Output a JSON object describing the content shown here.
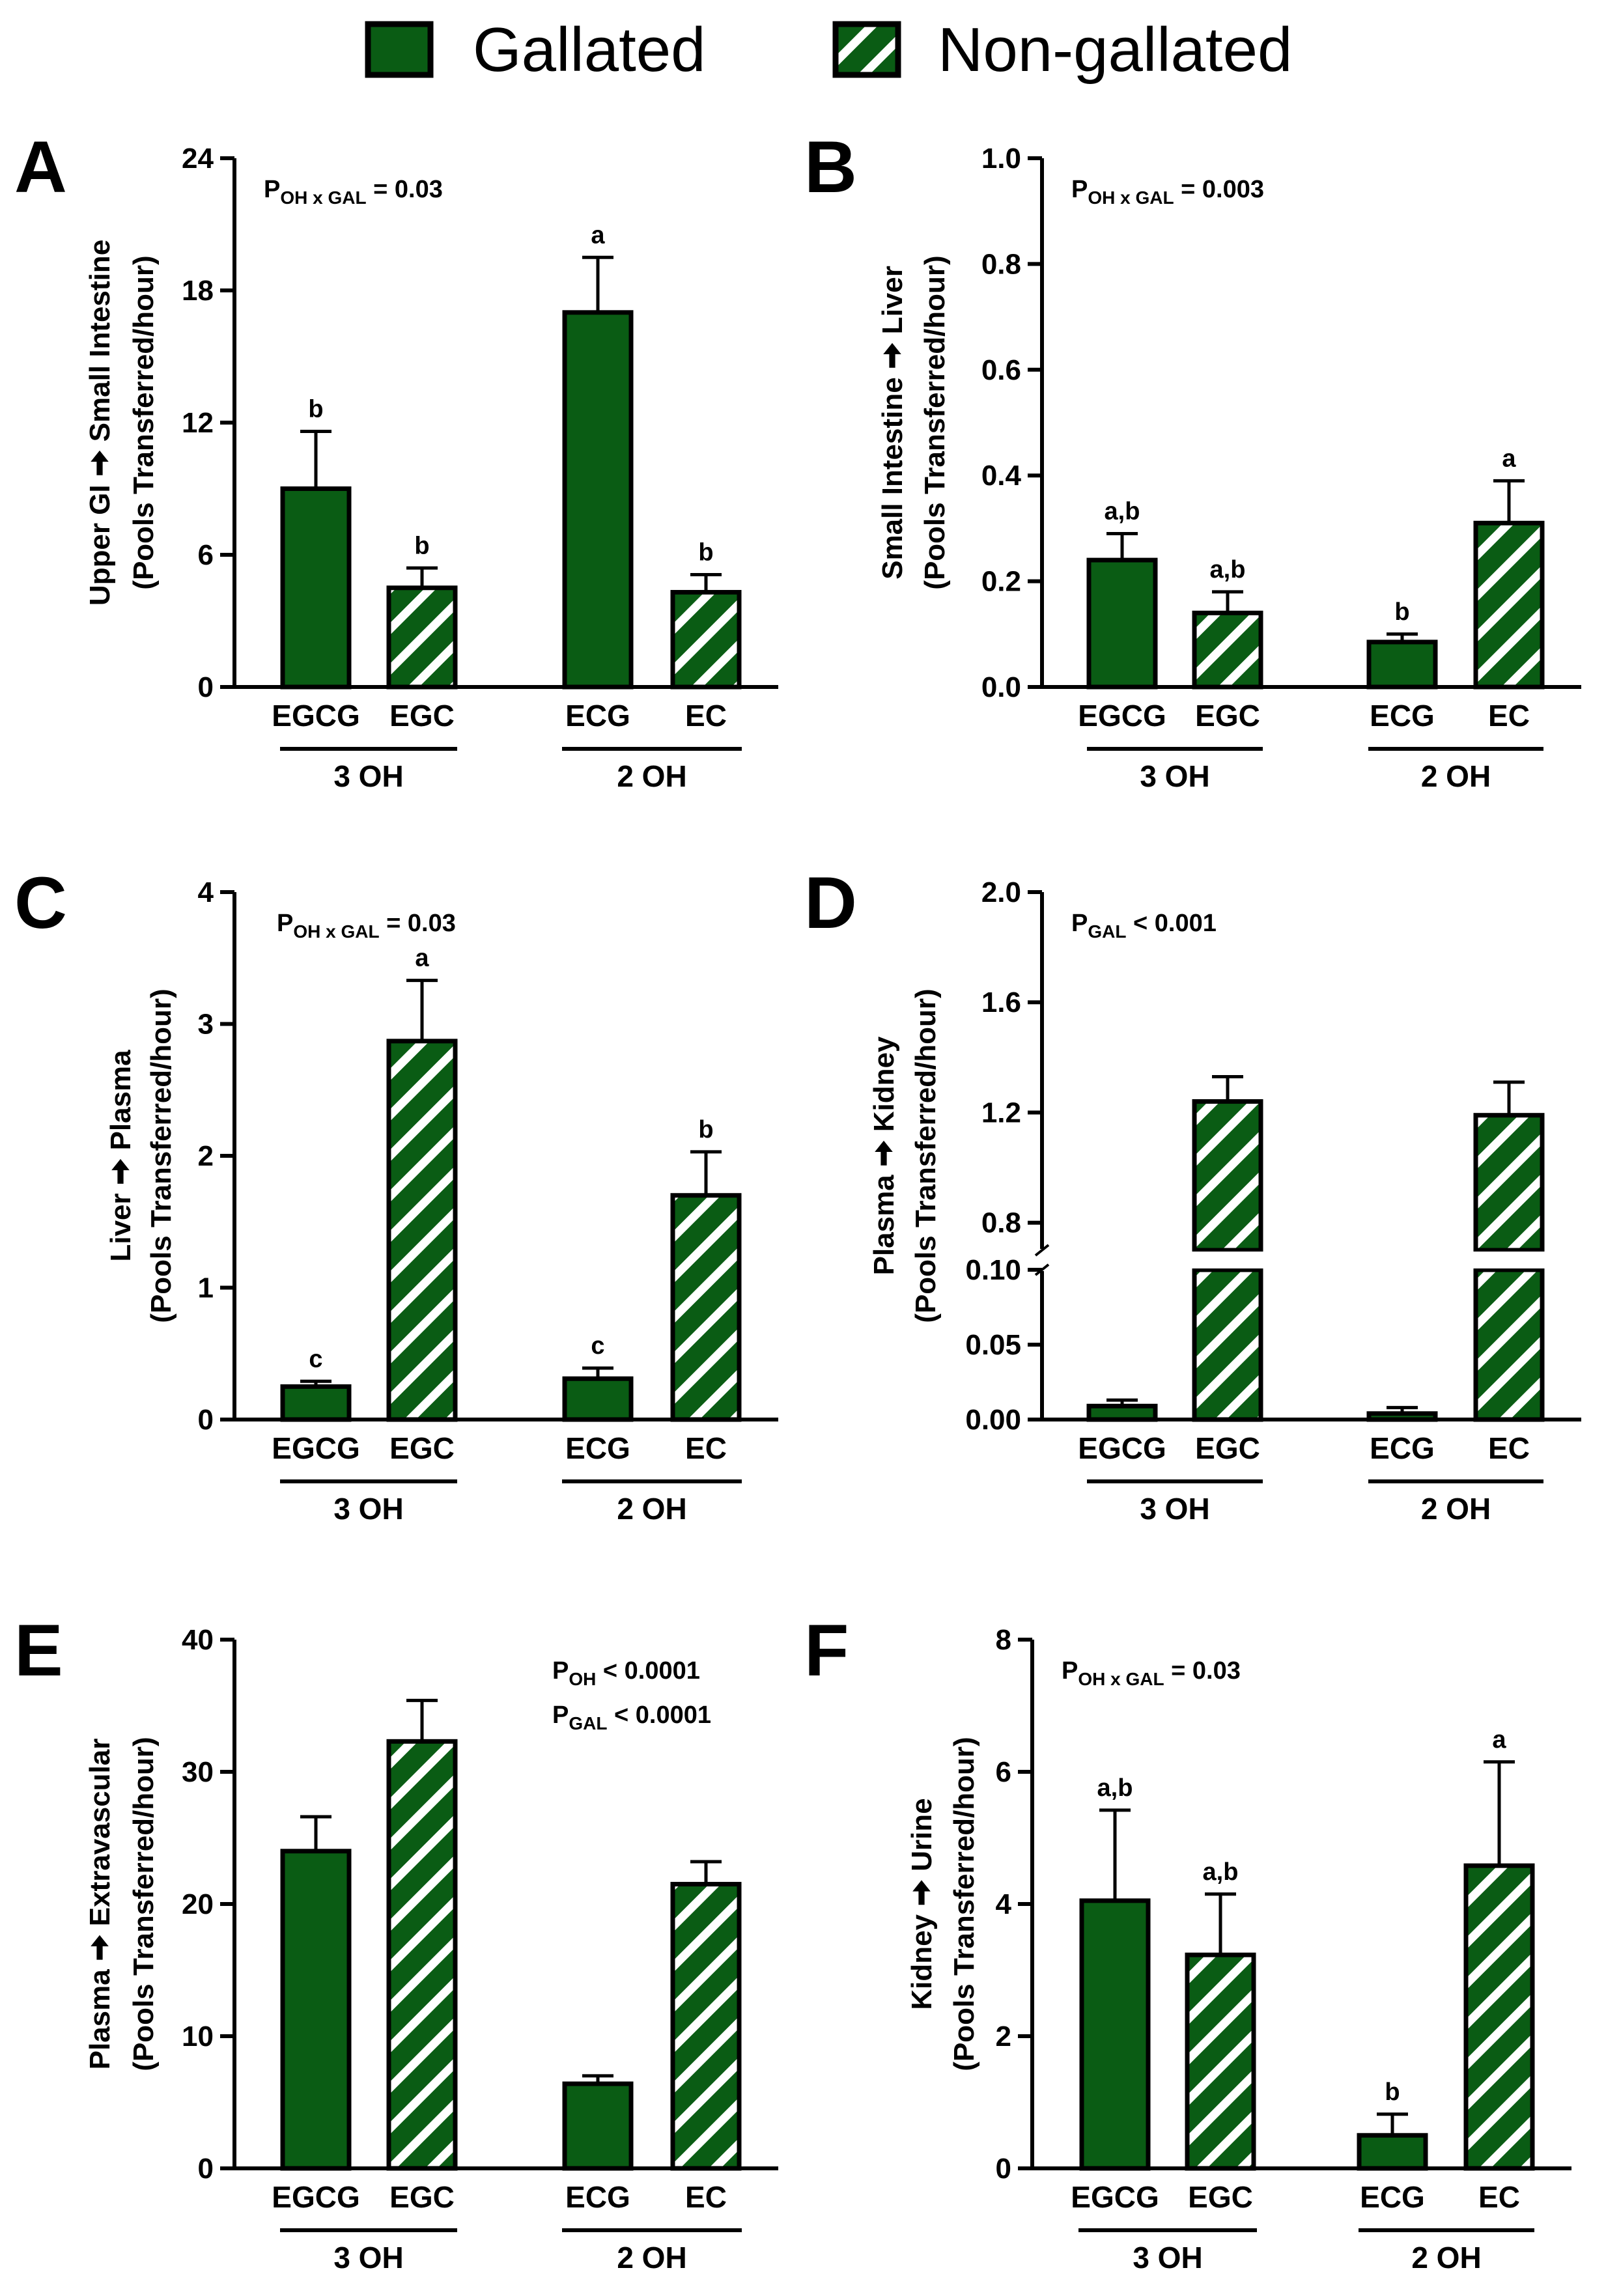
{
  "legend": {
    "gallated_label": "Gallated",
    "nongallated_label": "Non-gallated"
  },
  "colors": {
    "bar_fill": "#0a5c14",
    "hatch_stripe": "#ffffff",
    "outline": "#000000"
  },
  "chart_data": [
    {
      "id": "A",
      "type": "bar",
      "panel_letter": "A",
      "ylabel_line1_pre": "Upper GI",
      "ylabel_line1_post": "Small Intestine",
      "ylabel_line2": "(Pools Transferred/hour)",
      "ylim": [
        0,
        24
      ],
      "yticks": [
        0,
        6,
        12,
        18,
        24
      ],
      "ytick_labels": [
        "0",
        "6",
        "12",
        "18",
        "24"
      ],
      "categories": [
        "EGCG",
        "EGC",
        "ECG",
        "EC"
      ],
      "series": [
        {
          "name": "Mean",
          "values": [
            9.0,
            4.5,
            17.0,
            4.3
          ]
        },
        {
          "name": "SEM",
          "values": [
            2.6,
            0.9,
            2.5,
            0.8
          ]
        }
      ],
      "gallated": [
        true,
        false,
        true,
        false
      ],
      "significance": [
        "b",
        "b",
        "a",
        "b"
      ],
      "groups": [
        "3 OH",
        "2 OH"
      ],
      "stats": [
        {
          "p": "P",
          "sub": "OH x GAL",
          "rest": " = 0.03"
        }
      ],
      "stats_position": "top-left"
    },
    {
      "id": "B",
      "type": "bar",
      "panel_letter": "B",
      "ylabel_line1_pre": "Small Intestine",
      "ylabel_line1_post": "Liver",
      "ylabel_line2": "(Pools Transferred/hour)",
      "ylim": [
        0,
        1.0
      ],
      "yticks": [
        0,
        0.2,
        0.4,
        0.6,
        0.8,
        1.0
      ],
      "ytick_labels": [
        "0.0",
        "0.2",
        "0.4",
        "0.6",
        "0.8",
        "1.0"
      ],
      "categories": [
        "EGCG",
        "EGC",
        "ECG",
        "EC"
      ],
      "series": [
        {
          "name": "Mean",
          "values": [
            0.24,
            0.14,
            0.085,
            0.31
          ]
        },
        {
          "name": "SEM",
          "values": [
            0.05,
            0.04,
            0.015,
            0.08
          ]
        }
      ],
      "gallated": [
        true,
        false,
        true,
        false
      ],
      "significance": [
        "a,b",
        "a,b",
        "b",
        "a"
      ],
      "groups": [
        "3 OH",
        "2 OH"
      ],
      "stats": [
        {
          "p": "P",
          "sub": "OH x GAL",
          "rest": " = 0.003"
        }
      ],
      "stats_position": "top-left"
    },
    {
      "id": "C",
      "type": "bar",
      "panel_letter": "C",
      "ylabel_line1_pre": "Liver",
      "ylabel_line1_post": "Plasma",
      "ylabel_line2": "(Pools Transferred/hour)",
      "ylim": [
        0,
        4
      ],
      "yticks": [
        0,
        1,
        2,
        3,
        4
      ],
      "ytick_labels": [
        "0",
        "1",
        "2",
        "3",
        "4"
      ],
      "categories": [
        "EGCG",
        "EGC",
        "ECG",
        "EC"
      ],
      "series": [
        {
          "name": "Mean",
          "values": [
            0.25,
            2.87,
            0.31,
            1.7
          ]
        },
        {
          "name": "SEM",
          "values": [
            0.04,
            0.46,
            0.08,
            0.33
          ]
        }
      ],
      "gallated": [
        true,
        false,
        true,
        false
      ],
      "significance": [
        "c",
        "a",
        "c",
        "b"
      ],
      "groups": [
        "3 OH",
        "2 OH"
      ],
      "stats": [
        {
          "p": "P",
          "sub": "OH x GAL",
          "rest": " = 0.03"
        }
      ],
      "stats_position": "top-left"
    },
    {
      "id": "D",
      "type": "bar",
      "panel_letter": "D",
      "ylabel_line1_pre": "Plasma",
      "ylabel_line1_post": "Kidney",
      "ylabel_line2": "(Pools Transferred/hour)",
      "broken_axis": true,
      "lower_ylim": [
        0,
        0.1
      ],
      "upper_ylim": [
        0.7,
        2.0
      ],
      "lower_yticks": [
        0,
        0.05,
        0.1
      ],
      "lower_ytick_labels": [
        "0.00",
        "0.05",
        "0.10"
      ],
      "upper_yticks": [
        0.8,
        1.2,
        1.6,
        2.0
      ],
      "upper_ytick_labels": [
        "0.8",
        "1.2",
        "1.6",
        "2.0"
      ],
      "categories": [
        "EGCG",
        "EGC",
        "ECG",
        "EC"
      ],
      "series": [
        {
          "name": "Mean",
          "values": [
            0.009,
            1.24,
            0.004,
            1.19
          ]
        },
        {
          "name": "SEM",
          "values": [
            0.004,
            0.09,
            0.004,
            0.12
          ]
        }
      ],
      "gallated": [
        true,
        false,
        true,
        false
      ],
      "significance": [
        "",
        "",
        "",
        ""
      ],
      "groups": [
        "3 OH",
        "2 OH"
      ],
      "stats": [
        {
          "p": "P",
          "sub": "GAL",
          "rest": " < 0.001"
        }
      ],
      "stats_position": "top-left"
    },
    {
      "id": "E",
      "type": "bar",
      "panel_letter": "E",
      "ylabel_line1_pre": "Plasma",
      "ylabel_line1_post": "Extravascular",
      "ylabel_line2": "(Pools Transferred/hour)",
      "ylim": [
        0,
        40
      ],
      "yticks": [
        0,
        10,
        20,
        30,
        40
      ],
      "ytick_labels": [
        "0",
        "10",
        "20",
        "30",
        "40"
      ],
      "categories": [
        "EGCG",
        "EGC",
        "ECG",
        "EC"
      ],
      "series": [
        {
          "name": "Mean",
          "values": [
            24.0,
            32.3,
            6.4,
            21.5
          ]
        },
        {
          "name": "SEM",
          "values": [
            2.6,
            3.1,
            0.6,
            1.7
          ]
        }
      ],
      "gallated": [
        true,
        false,
        true,
        false
      ],
      "significance": [
        "",
        "",
        "",
        ""
      ],
      "groups": [
        "3 OH",
        "2 OH"
      ],
      "stats": [
        {
          "p": "P",
          "sub": "OH",
          "rest": " < 0.0001"
        },
        {
          "p": "P",
          "sub": "GAL",
          "rest": " < 0.0001"
        }
      ],
      "stats_position": "top-right"
    },
    {
      "id": "F",
      "type": "bar",
      "panel_letter": "F",
      "ylabel_line1_pre": "Kidney",
      "ylabel_line1_post": "Urine",
      "ylabel_line2": "(Pools Transferred/hour)",
      "ylim": [
        0,
        8
      ],
      "yticks": [
        0,
        2,
        4,
        6,
        8
      ],
      "ytick_labels": [
        "0",
        "2",
        "4",
        "6",
        "8"
      ],
      "categories": [
        "EGCG",
        "EGC",
        "ECG",
        "EC"
      ],
      "series": [
        {
          "name": "Mean",
          "values": [
            4.05,
            3.23,
            0.5,
            4.58
          ]
        },
        {
          "name": "SEM",
          "values": [
            1.37,
            0.92,
            0.32,
            1.57
          ]
        }
      ],
      "gallated": [
        true,
        false,
        true,
        false
      ],
      "significance": [
        "a,b",
        "a,b",
        "b",
        "a"
      ],
      "groups": [
        "3 OH",
        "2 OH"
      ],
      "stats": [
        {
          "p": "P",
          "sub": "OH x GAL",
          "rest": " = 0.03"
        }
      ],
      "stats_position": "top-left"
    }
  ]
}
